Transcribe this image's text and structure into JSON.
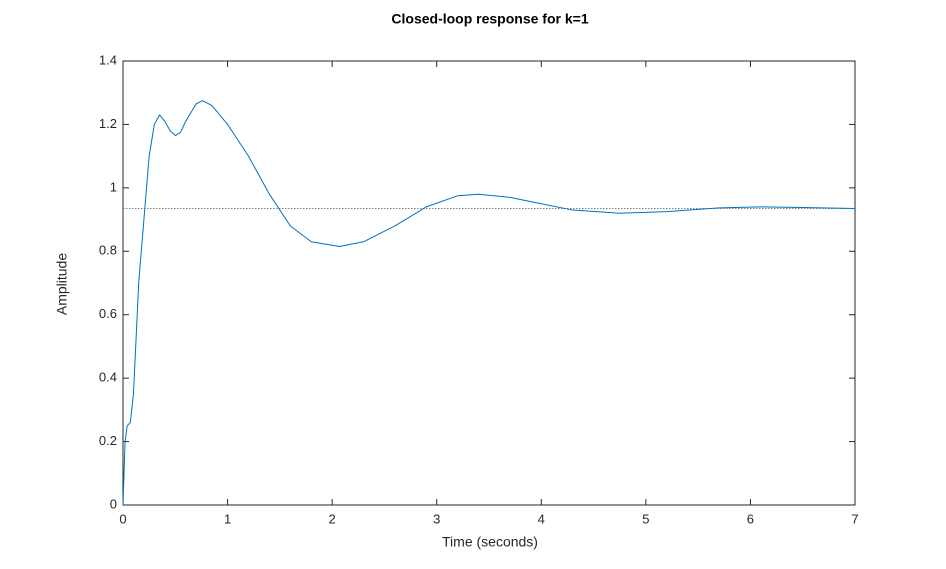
{
  "chart_data": {
    "type": "line",
    "title": "Closed-loop response for k=1",
    "x_label": "Time (seconds)",
    "y_label": "Amplitude",
    "x": [
      0,
      0.02,
      0.04,
      0.07,
      0.1,
      0.15,
      0.2,
      0.25,
      0.3,
      0.35,
      0.4,
      0.45,
      0.5,
      0.55,
      0.6,
      0.7,
      0.76,
      0.85,
      1.0,
      1.2,
      1.4,
      1.6,
      1.8,
      2.07,
      2.3,
      2.6,
      2.9,
      3.2,
      3.4,
      3.7,
      4.0,
      4.3,
      4.75,
      5.2,
      5.7,
      6.1,
      6.5,
      7
    ],
    "series": [
      {
        "name": "k=1",
        "color": "#0072bd",
        "values": [
          0,
          0.2,
          0.25,
          0.26,
          0.35,
          0.7,
          0.9,
          1.1,
          1.2,
          1.23,
          1.21,
          1.18,
          1.165,
          1.175,
          1.21,
          1.265,
          1.275,
          1.26,
          1.2,
          1.1,
          0.98,
          0.88,
          0.83,
          0.815,
          0.83,
          0.88,
          0.94,
          0.975,
          0.98,
          0.97,
          0.95,
          0.93,
          0.92,
          0.925,
          0.937,
          0.94,
          0.938,
          0.935
        ]
      }
    ],
    "reference_line": {
      "value": 0.935,
      "color": "#7f7f7f",
      "style": "dotted"
    },
    "xlim": [
      0,
      7
    ],
    "xticks": [
      0,
      1,
      2,
      3,
      4,
      5,
      6,
      7
    ],
    "ylim": [
      0,
      1.4
    ],
    "yticks": [
      0,
      0.2,
      0.4,
      0.6,
      0.8,
      1,
      1.2,
      1.4
    ],
    "grid": false
  }
}
